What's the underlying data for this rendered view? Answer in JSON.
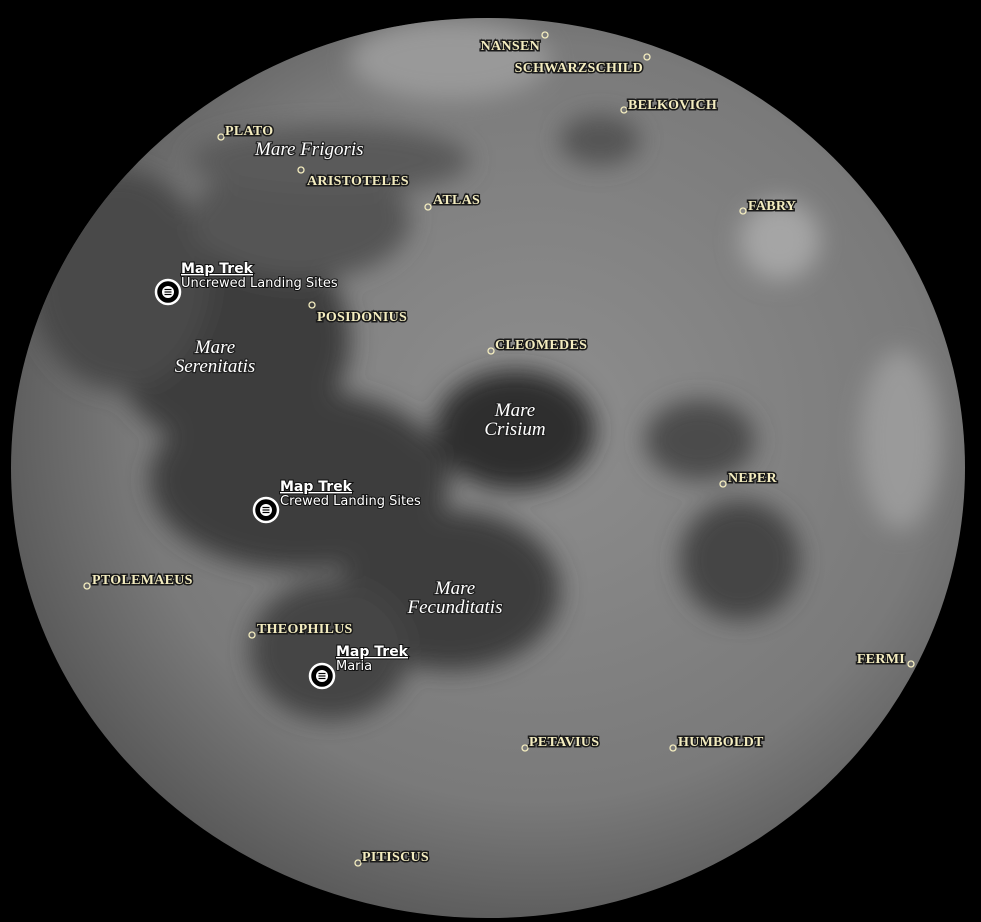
{
  "craters": [
    {
      "label": "NANSEN"
    },
    {
      "label": "SCHWARZSCHILD"
    },
    {
      "label": "BELKOVICH"
    },
    {
      "label": "PLATO"
    },
    {
      "label": "ARISTOTELES"
    },
    {
      "label": "ATLAS"
    },
    {
      "label": "FABRY"
    },
    {
      "label": "POSIDONIUS"
    },
    {
      "label": "CLEOMEDES"
    },
    {
      "label": "NEPER"
    },
    {
      "label": "PTOLEMAEUS"
    },
    {
      "label": "THEOPHILUS"
    },
    {
      "label": "FERMI"
    },
    {
      "label": "PETAVIUS"
    },
    {
      "label": "HUMBOLDT"
    },
    {
      "label": "PITISCUS"
    }
  ],
  "maria": [
    {
      "lines": [
        "Mare Frigoris"
      ]
    },
    {
      "lines": [
        "Mare",
        "Serenitatis"
      ]
    },
    {
      "lines": [
        "Mare",
        "Crisium"
      ]
    },
    {
      "lines": [
        "Mare",
        "Fecunditatis"
      ]
    }
  ],
  "map_treks": [
    {
      "title": "Map Trek",
      "subtitle": "Uncrewed Landing Sites"
    },
    {
      "title": "Map Trek",
      "subtitle": "Crewed Landing Sites"
    },
    {
      "title": "Map Trek",
      "subtitle": "Maria"
    }
  ]
}
